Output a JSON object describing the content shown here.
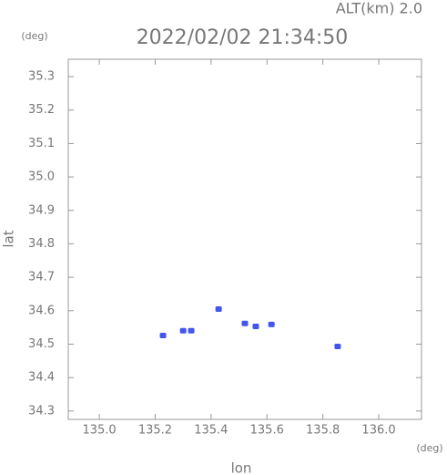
{
  "chart_data": {
    "type": "scatter",
    "title": "2022/02/02 21:34:50",
    "subtitle": "ALT(km) 2.0",
    "x_label": "lon",
    "y_label": "lat",
    "x_unit": "(deg)",
    "y_unit": "(deg)",
    "x": [
      135.228,
      135.3,
      135.329,
      135.427,
      135.521,
      135.56,
      135.616,
      135.853
    ],
    "values": [
      34.526,
      34.54,
      34.54,
      34.605,
      34.562,
      34.553,
      34.559,
      34.493
    ],
    "color": "#4455ee",
    "xlim": [
      134.889,
      136.153
    ],
    "ylim": [
      34.275,
      35.352
    ],
    "xticks": [
      {
        "value": 135,
        "label": "135.0"
      },
      135.2,
      135.4,
      135.6,
      135.8,
      {
        "value": 136,
        "label": "136.0"
      }
    ],
    "yticks": [
      34.3,
      34.4,
      34.5,
      34.6,
      34.7,
      34.8,
      34.9,
      {
        "value": 35,
        "label": "35.0"
      },
      35.1,
      35.2,
      35.3
    ]
  }
}
